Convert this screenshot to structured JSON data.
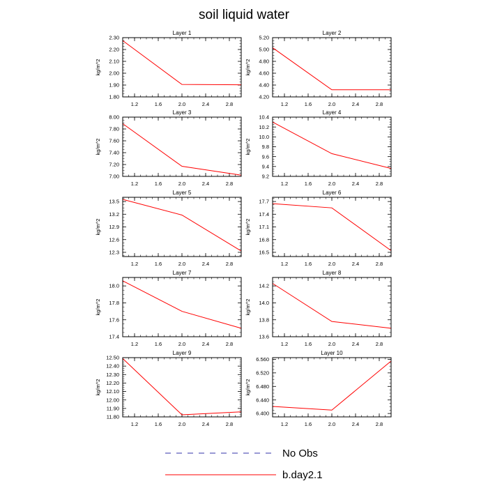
{
  "figure": {
    "title": "soil liquid water",
    "ylabel": "kg/m^2"
  },
  "legend": {
    "items": [
      {
        "label": "No Obs",
        "color": "#3333aa",
        "style": "dashed"
      },
      {
        "label": "b.day2.1",
        "color": "#ff0000",
        "style": "solid"
      }
    ]
  },
  "chart_data": [
    {
      "type": "line",
      "title": "Layer 1",
      "ylabel": "kg/m^2",
      "xlim": [
        1.0,
        3.0
      ],
      "ylim": [
        1.8,
        2.3
      ],
      "x_ticks": [
        "1.2",
        "1.6",
        "2.0",
        "2.4",
        "2.8"
      ],
      "y_ticks": [
        "1.80",
        "1.90",
        "2.00",
        "2.10",
        "2.20",
        "2.30"
      ],
      "series": [
        {
          "name": "b.day2.1",
          "x": [
            1,
            2,
            3
          ],
          "y": [
            2.275,
            1.905,
            1.902
          ]
        }
      ]
    },
    {
      "type": "line",
      "title": "Layer 2",
      "ylabel": "kg/m^2",
      "xlim": [
        1.0,
        3.0
      ],
      "ylim": [
        4.2,
        5.2
      ],
      "x_ticks": [
        "1.2",
        "1.6",
        "2.0",
        "2.4",
        "2.8"
      ],
      "y_ticks": [
        "4.20",
        "4.40",
        "4.60",
        "4.80",
        "5.00",
        "5.20"
      ],
      "series": [
        {
          "name": "b.day2.1",
          "x": [
            1,
            2,
            3
          ],
          "y": [
            5.03,
            4.32,
            4.32
          ]
        }
      ]
    },
    {
      "type": "line",
      "title": "Layer 3",
      "ylabel": "kg/m^2",
      "xlim": [
        1.0,
        3.0
      ],
      "ylim": [
        7.0,
        8.0
      ],
      "x_ticks": [
        "1.2",
        "1.6",
        "2.0",
        "2.4",
        "2.8"
      ],
      "y_ticks": [
        "7.00",
        "7.20",
        "7.40",
        "7.60",
        "7.80",
        "8.00"
      ],
      "series": [
        {
          "name": "b.day2.1",
          "x": [
            1,
            2,
            3
          ],
          "y": [
            7.89,
            7.17,
            7.02
          ]
        }
      ]
    },
    {
      "type": "line",
      "title": "Layer 4",
      "ylabel": "kg/m^2",
      "xlim": [
        1.0,
        3.0
      ],
      "ylim": [
        9.2,
        10.4
      ],
      "x_ticks": [
        "1.2",
        "1.6",
        "2.0",
        "2.4",
        "2.8"
      ],
      "y_ticks": [
        "9.2",
        "9.4",
        "9.6",
        "9.8",
        "10.0",
        "10.2",
        "10.4"
      ],
      "series": [
        {
          "name": "b.day2.1",
          "x": [
            1,
            2,
            3
          ],
          "y": [
            10.3,
            9.66,
            9.36
          ]
        }
      ]
    },
    {
      "type": "line",
      "title": "Layer 5",
      "ylabel": "kg/m^2",
      "xlim": [
        1.0,
        3.0
      ],
      "ylim": [
        12.2,
        13.6
      ],
      "x_ticks": [
        "1.2",
        "1.6",
        "2.0",
        "2.4",
        "2.8"
      ],
      "y_ticks": [
        "12.3",
        "12.6",
        "12.9",
        "13.2",
        "13.5"
      ],
      "series": [
        {
          "name": "b.day2.1",
          "x": [
            1,
            2,
            3
          ],
          "y": [
            13.55,
            13.18,
            12.33
          ]
        }
      ]
    },
    {
      "type": "line",
      "title": "Layer 6",
      "ylabel": "kg/m^2",
      "xlim": [
        1.0,
        3.0
      ],
      "ylim": [
        16.4,
        17.8
      ],
      "x_ticks": [
        "1.2",
        "1.6",
        "2.0",
        "2.4",
        "2.8"
      ],
      "y_ticks": [
        "16.5",
        "16.8",
        "17.1",
        "17.4",
        "17.7"
      ],
      "series": [
        {
          "name": "b.day2.1",
          "x": [
            1,
            2,
            3
          ],
          "y": [
            17.65,
            17.55,
            16.54
          ]
        }
      ]
    },
    {
      "type": "line",
      "title": "Layer 7",
      "ylabel": "kg/m^2",
      "xlim": [
        1.0,
        3.0
      ],
      "ylim": [
        17.4,
        18.1
      ],
      "x_ticks": [
        "1.2",
        "1.6",
        "2.0",
        "2.4",
        "2.8"
      ],
      "y_ticks": [
        "17.4",
        "17.6",
        "17.8",
        "18.0"
      ],
      "series": [
        {
          "name": "b.day2.1",
          "x": [
            1,
            2,
            3
          ],
          "y": [
            18.06,
            17.7,
            17.5
          ]
        }
      ]
    },
    {
      "type": "line",
      "title": "Layer 8",
      "ylabel": "kg/m^2",
      "xlim": [
        1.0,
        3.0
      ],
      "ylim": [
        13.6,
        14.3
      ],
      "x_ticks": [
        "1.2",
        "1.6",
        "2.0",
        "2.4",
        "2.8"
      ],
      "y_ticks": [
        "13.6",
        "13.8",
        "14.0",
        "14.2"
      ],
      "series": [
        {
          "name": "b.day2.1",
          "x": [
            1,
            2,
            3
          ],
          "y": [
            14.23,
            13.78,
            13.7
          ]
        }
      ]
    },
    {
      "type": "line",
      "title": "Layer 9",
      "ylabel": "kg/m^2",
      "xlim": [
        1.0,
        3.0
      ],
      "ylim": [
        11.8,
        12.5
      ],
      "x_ticks": [
        "1.2",
        "1.6",
        "2.0",
        "2.4",
        "2.8"
      ],
      "y_ticks": [
        "11.80",
        "11.90",
        "12.00",
        "12.10",
        "12.20",
        "12.30",
        "12.40",
        "12.50"
      ],
      "series": [
        {
          "name": "b.day2.1",
          "x": [
            1,
            2,
            3
          ],
          "y": [
            12.49,
            11.825,
            11.86
          ]
        }
      ]
    },
    {
      "type": "line",
      "title": "Layer 10",
      "ylabel": "kg/m^2",
      "xlim": [
        1.0,
        3.0
      ],
      "ylim": [
        6.39,
        6.565
      ],
      "x_ticks": [
        "1.2",
        "1.6",
        "2.0",
        "2.4",
        "2.8"
      ],
      "y_ticks": [
        "6.400",
        "6.440",
        "6.480",
        "6.520",
        "6.560"
      ],
      "series": [
        {
          "name": "b.day2.1",
          "x": [
            1,
            2,
            3
          ],
          "y": [
            6.421,
            6.41,
            6.555
          ]
        }
      ]
    }
  ]
}
